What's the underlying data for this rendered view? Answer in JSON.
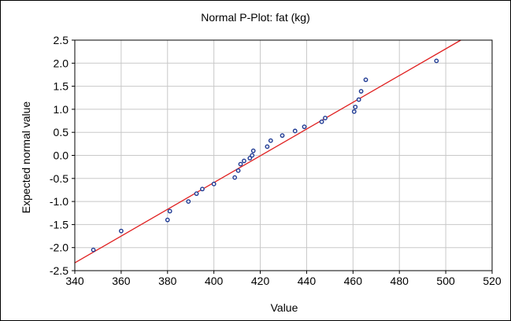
{
  "chart_data": {
    "type": "scatter",
    "title": "Normal P-Plot: fat (kg)",
    "xlabel": "Value",
    "ylabel": "Expected normal value",
    "xlim": [
      340,
      520
    ],
    "ylim": [
      -2.5,
      2.5
    ],
    "x_ticks": [
      "340",
      "360",
      "380",
      "400",
      "420",
      "440",
      "460",
      "480",
      "500",
      "520"
    ],
    "y_ticks": [
      "2.5",
      "2.0",
      "1.5",
      "1.0",
      "0.5",
      "0.0",
      "-0.5",
      "-1.0",
      "-1.5",
      "-2.0",
      "-2.5"
    ],
    "grid": true,
    "marker_color": "#1f3a93",
    "line_color": "#e02020",
    "points": [
      {
        "x": 348,
        "y": -2.05
      },
      {
        "x": 360,
        "y": -1.64
      },
      {
        "x": 380,
        "y": -1.4
      },
      {
        "x": 381,
        "y": -1.21
      },
      {
        "x": 389,
        "y": -1.0
      },
      {
        "x": 392.5,
        "y": -0.83
      },
      {
        "x": 395,
        "y": -0.73
      },
      {
        "x": 400,
        "y": -0.62
      },
      {
        "x": 409,
        "y": -0.48
      },
      {
        "x": 410.5,
        "y": -0.33
      },
      {
        "x": 411.5,
        "y": -0.19
      },
      {
        "x": 413,
        "y": -0.12
      },
      {
        "x": 415.5,
        "y": -0.06
      },
      {
        "x": 416.5,
        "y": 0.0
      },
      {
        "x": 417,
        "y": 0.1
      },
      {
        "x": 423,
        "y": 0.19
      },
      {
        "x": 424.5,
        "y": 0.32
      },
      {
        "x": 429.5,
        "y": 0.43
      },
      {
        "x": 435,
        "y": 0.53
      },
      {
        "x": 439,
        "y": 0.62
      },
      {
        "x": 446.5,
        "y": 0.73
      },
      {
        "x": 448,
        "y": 0.81
      },
      {
        "x": 460.5,
        "y": 0.95
      },
      {
        "x": 461,
        "y": 1.05
      },
      {
        "x": 462.5,
        "y": 1.21
      },
      {
        "x": 463.5,
        "y": 1.39
      },
      {
        "x": 465.5,
        "y": 1.64
      },
      {
        "x": 496,
        "y": 2.05
      }
    ],
    "reference_line": [
      {
        "x": 340,
        "y": -2.33
      },
      {
        "x": 506.5,
        "y": 2.5
      }
    ]
  }
}
